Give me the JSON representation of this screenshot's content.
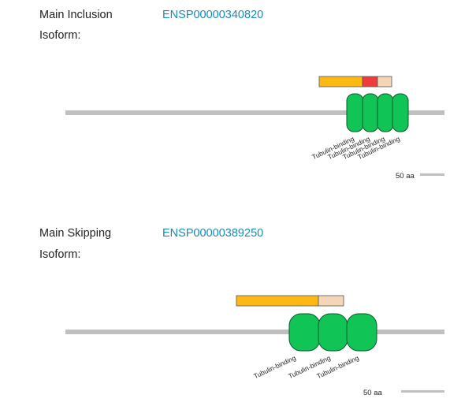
{
  "panels": [
    {
      "label_line1": "Main Inclusion",
      "label_line2": "Isoform:",
      "isoform_id": "ENSP00000340820",
      "colors": {
        "backbone": "#c0c0c0",
        "domain_fill": "#11c456",
        "domain_stroke": "#0a5a2a"
      },
      "domain_names": [
        "Tubulin-binding",
        "Tubulin-binding",
        "Tubulin-binding",
        "Tubulin-binding"
      ],
      "segment_colors": [
        "#fdb913",
        "#ef3b3b",
        "#f4d6b7"
      ],
      "scale_label": "50 aa"
    },
    {
      "label_line1": "Main Skipping",
      "label_line2": "Isoform:",
      "isoform_id": "ENSP00000389250",
      "colors": {
        "backbone": "#c0c0c0",
        "domain_fill": "#11c456",
        "domain_stroke": "#0a5a2a"
      },
      "domain_names": [
        "Tubulin-binding",
        "Tubulin-binding",
        "Tubulin-binding"
      ],
      "segment_colors": [
        "#fdb913",
        "#f4d6b7"
      ],
      "scale_label": "50 aa"
    }
  ]
}
